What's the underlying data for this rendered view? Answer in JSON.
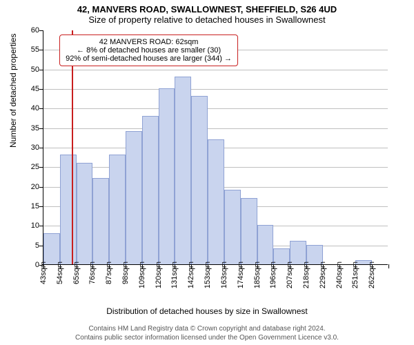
{
  "header": {
    "address": "42, MANVERS ROAD, SWALLOWNEST, SHEFFIELD, S26 4UD",
    "subtitle": "Size of property relative to detached houses in Swallownest"
  },
  "annotation": {
    "line1": "42 MANVERS ROAD: 62sqm",
    "line2": "← 8% of detached houses are smaller (30)",
    "line3": "92% of semi-detached houses are larger (344) →",
    "border_color": "#c81e1e",
    "background": "#ffffff",
    "ref_x_value": 62
  },
  "chart": {
    "type": "histogram",
    "ylabel": "Number of detached properties",
    "xlabel": "Distribution of detached houses by size in Swallownest",
    "ylim": [
      0,
      60
    ],
    "ytick_step": 5,
    "x_start": 43,
    "x_bin_width": 11,
    "bins": 21,
    "x_labels": [
      "43sqm",
      "54sqm",
      "65sqm",
      "76sqm",
      "87sqm",
      "98sqm",
      "109sqm",
      "120sqm",
      "131sqm",
      "142sqm",
      "153sqm",
      "163sqm",
      "174sqm",
      "185sqm",
      "196sqm",
      "207sqm",
      "218sqm",
      "229sqm",
      "240sqm",
      "251sqm",
      "262sqm"
    ],
    "values": [
      8,
      28,
      26,
      22,
      28,
      34,
      38,
      45,
      48,
      43,
      32,
      19,
      17,
      10,
      4,
      6,
      5,
      0,
      0,
      1,
      0
    ],
    "bar_fill": "#c9d4ee",
    "bar_stroke": "#8fa2d4",
    "grid_color": "#000000",
    "background": "#ffffff"
  },
  "footer": {
    "line1": "Contains HM Land Registry data © Crown copyright and database right 2024.",
    "line2": "Contains public sector information licensed under the Open Government Licence v3.0."
  }
}
